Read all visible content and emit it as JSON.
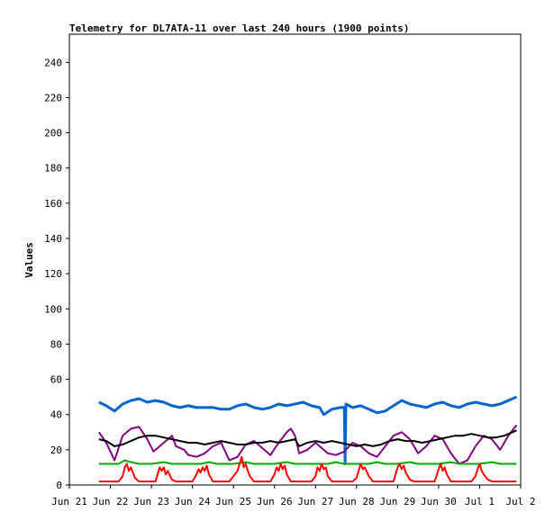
{
  "chart_data": {
    "type": "line",
    "title": "Telemetry for DL7ATA-11 over last 240 hours (1900 points)",
    "xlabel": "",
    "ylabel": "Values",
    "x_ticks": [
      "Jun 21",
      "Jun 22",
      "Jun 23",
      "Jun 24",
      "Jun 25",
      "Jun 26",
      "Jun 27",
      "Jun 28",
      "Jun 29",
      "Jun 30",
      "Jul 1",
      "Jul 2"
    ],
    "xlim_days": [
      0,
      11
    ],
    "ylim": [
      0,
      256
    ],
    "y_ticks": [
      0,
      20,
      40,
      60,
      80,
      100,
      120,
      140,
      160,
      180,
      200,
      220,
      240
    ],
    "grid": false,
    "legend": "none",
    "series": [
      {
        "color": "#0066cc",
        "points": [
          [
            0.72,
            47
          ],
          [
            0.9,
            45
          ],
          [
            1.1,
            42
          ],
          [
            1.3,
            46
          ],
          [
            1.5,
            48
          ],
          [
            1.7,
            49
          ],
          [
            1.9,
            47
          ],
          [
            2.1,
            48
          ],
          [
            2.3,
            47
          ],
          [
            2.5,
            45
          ],
          [
            2.7,
            44
          ],
          [
            2.9,
            45
          ],
          [
            3.1,
            44
          ],
          [
            3.3,
            44
          ],
          [
            3.5,
            44
          ],
          [
            3.7,
            43
          ],
          [
            3.9,
            43
          ],
          [
            4.1,
            45
          ],
          [
            4.3,
            46
          ],
          [
            4.5,
            44
          ],
          [
            4.7,
            43
          ],
          [
            4.9,
            44
          ],
          [
            5.1,
            46
          ],
          [
            5.3,
            45
          ],
          [
            5.5,
            46
          ],
          [
            5.7,
            47
          ],
          [
            5.9,
            45
          ],
          [
            6.1,
            44
          ],
          [
            6.2,
            40
          ],
          [
            6.4,
            43
          ],
          [
            6.6,
            44
          ],
          [
            6.7,
            44
          ],
          [
            6.72,
            12
          ],
          [
            6.74,
            46
          ],
          [
            6.9,
            44
          ],
          [
            7.1,
            45
          ],
          [
            7.3,
            43
          ],
          [
            7.5,
            41
          ],
          [
            7.7,
            42
          ],
          [
            7.9,
            45
          ],
          [
            8.1,
            48
          ],
          [
            8.3,
            46
          ],
          [
            8.5,
            45
          ],
          [
            8.7,
            44
          ],
          [
            8.9,
            46
          ],
          [
            9.1,
            47
          ],
          [
            9.3,
            45
          ],
          [
            9.5,
            44
          ],
          [
            9.7,
            46
          ],
          [
            9.9,
            47
          ],
          [
            10.1,
            46
          ],
          [
            10.3,
            45
          ],
          [
            10.5,
            46
          ],
          [
            10.7,
            48
          ],
          [
            10.9,
            50
          ]
        ]
      },
      {
        "color": "#800080",
        "points": [
          [
            0.72,
            30
          ],
          [
            0.9,
            24
          ],
          [
            1.1,
            14
          ],
          [
            1.3,
            28
          ],
          [
            1.5,
            32
          ],
          [
            1.7,
            33
          ],
          [
            1.9,
            26
          ],
          [
            2.05,
            19
          ],
          [
            2.3,
            24
          ],
          [
            2.5,
            28
          ],
          [
            2.6,
            22
          ],
          [
            2.8,
            20
          ],
          [
            2.9,
            17
          ],
          [
            3.1,
            16
          ],
          [
            3.3,
            18
          ],
          [
            3.5,
            22
          ],
          [
            3.7,
            24
          ],
          [
            3.9,
            14
          ],
          [
            4.1,
            16
          ],
          [
            4.3,
            23
          ],
          [
            4.5,
            25
          ],
          [
            4.7,
            21
          ],
          [
            4.9,
            17
          ],
          [
            5.1,
            24
          ],
          [
            5.3,
            30
          ],
          [
            5.4,
            32
          ],
          [
            5.5,
            28
          ],
          [
            5.6,
            18
          ],
          [
            5.8,
            20
          ],
          [
            6.0,
            24
          ],
          [
            6.1,
            22
          ],
          [
            6.3,
            18
          ],
          [
            6.5,
            17
          ],
          [
            6.7,
            19
          ],
          [
            6.9,
            24
          ],
          [
            7.1,
            22
          ],
          [
            7.3,
            18
          ],
          [
            7.5,
            16
          ],
          [
            7.7,
            22
          ],
          [
            7.9,
            28
          ],
          [
            8.1,
            30
          ],
          [
            8.3,
            26
          ],
          [
            8.5,
            18
          ],
          [
            8.7,
            22
          ],
          [
            8.9,
            28
          ],
          [
            9.1,
            26
          ],
          [
            9.3,
            18
          ],
          [
            9.5,
            12
          ],
          [
            9.7,
            14
          ],
          [
            9.9,
            22
          ],
          [
            10.1,
            28
          ],
          [
            10.3,
            26
          ],
          [
            10.5,
            20
          ],
          [
            10.7,
            28
          ],
          [
            10.9,
            34
          ]
        ]
      },
      {
        "color": "#000000",
        "points": [
          [
            0.72,
            26
          ],
          [
            0.9,
            25
          ],
          [
            1.1,
            22
          ],
          [
            1.3,
            23
          ],
          [
            1.5,
            25
          ],
          [
            1.7,
            27
          ],
          [
            1.9,
            28
          ],
          [
            2.1,
            28
          ],
          [
            2.3,
            27
          ],
          [
            2.5,
            26
          ],
          [
            2.7,
            25
          ],
          [
            2.9,
            24
          ],
          [
            3.1,
            24
          ],
          [
            3.3,
            23
          ],
          [
            3.5,
            24
          ],
          [
            3.7,
            25
          ],
          [
            3.9,
            24
          ],
          [
            4.1,
            23
          ],
          [
            4.3,
            23
          ],
          [
            4.5,
            24
          ],
          [
            4.7,
            24
          ],
          [
            4.9,
            25
          ],
          [
            5.1,
            24
          ],
          [
            5.3,
            25
          ],
          [
            5.5,
            26
          ],
          [
            5.6,
            22
          ],
          [
            5.8,
            24
          ],
          [
            6.0,
            25
          ],
          [
            6.2,
            24
          ],
          [
            6.4,
            25
          ],
          [
            6.6,
            24
          ],
          [
            6.8,
            23
          ],
          [
            7.0,
            22
          ],
          [
            7.2,
            23
          ],
          [
            7.4,
            22
          ],
          [
            7.6,
            23
          ],
          [
            7.8,
            25
          ],
          [
            8.0,
            26
          ],
          [
            8.2,
            25
          ],
          [
            8.4,
            25
          ],
          [
            8.6,
            24
          ],
          [
            8.8,
            25
          ],
          [
            9.0,
            26
          ],
          [
            9.2,
            27
          ],
          [
            9.4,
            28
          ],
          [
            9.6,
            28
          ],
          [
            9.8,
            29
          ],
          [
            10.0,
            28
          ],
          [
            10.2,
            27
          ],
          [
            10.4,
            27
          ],
          [
            10.6,
            28
          ],
          [
            10.8,
            30
          ],
          [
            10.9,
            31
          ]
        ]
      },
      {
        "color": "#00aa00",
        "points": [
          [
            0.72,
            12
          ],
          [
            1.0,
            12
          ],
          [
            1.2,
            12
          ],
          [
            1.35,
            14
          ],
          [
            1.5,
            13
          ],
          [
            1.7,
            12
          ],
          [
            2.0,
            12
          ],
          [
            2.3,
            13
          ],
          [
            2.5,
            12
          ],
          [
            2.8,
            12
          ],
          [
            3.2,
            12
          ],
          [
            3.4,
            13
          ],
          [
            3.6,
            12
          ],
          [
            4.0,
            12
          ],
          [
            4.3,
            13
          ],
          [
            4.5,
            12
          ],
          [
            4.8,
            12
          ],
          [
            5.0,
            12
          ],
          [
            5.3,
            13
          ],
          [
            5.5,
            12
          ],
          [
            5.8,
            12
          ],
          [
            6.0,
            12
          ],
          [
            6.3,
            12
          ],
          [
            6.5,
            13
          ],
          [
            6.7,
            12
          ],
          [
            7.0,
            12
          ],
          [
            7.3,
            12
          ],
          [
            7.5,
            13
          ],
          [
            7.7,
            12
          ],
          [
            8.0,
            12
          ],
          [
            8.3,
            13
          ],
          [
            8.5,
            12
          ],
          [
            8.8,
            12
          ],
          [
            9.0,
            12
          ],
          [
            9.3,
            13
          ],
          [
            9.5,
            12
          ],
          [
            9.8,
            12
          ],
          [
            10.0,
            12
          ],
          [
            10.3,
            13
          ],
          [
            10.5,
            12
          ],
          [
            10.9,
            12
          ]
        ]
      },
      {
        "color": "#ff0000",
        "points": [
          [
            0.72,
            2
          ],
          [
            1.0,
            2
          ],
          [
            1.2,
            2
          ],
          [
            1.3,
            5
          ],
          [
            1.35,
            10
          ],
          [
            1.4,
            12
          ],
          [
            1.45,
            8
          ],
          [
            1.5,
            10
          ],
          [
            1.6,
            4
          ],
          [
            1.7,
            2
          ],
          [
            2.0,
            2
          ],
          [
            2.1,
            2
          ],
          [
            2.15,
            6
          ],
          [
            2.2,
            10
          ],
          [
            2.25,
            8
          ],
          [
            2.3,
            10
          ],
          [
            2.35,
            6
          ],
          [
            2.4,
            8
          ],
          [
            2.5,
            3
          ],
          [
            2.6,
            2
          ],
          [
            3.0,
            2
          ],
          [
            3.1,
            6
          ],
          [
            3.15,
            9
          ],
          [
            3.2,
            7
          ],
          [
            3.25,
            10
          ],
          [
            3.3,
            8
          ],
          [
            3.35,
            11
          ],
          [
            3.4,
            6
          ],
          [
            3.5,
            2
          ],
          [
            3.9,
            2
          ],
          [
            4.1,
            8
          ],
          [
            4.15,
            12
          ],
          [
            4.2,
            16
          ],
          [
            4.25,
            10
          ],
          [
            4.3,
            12
          ],
          [
            4.35,
            8
          ],
          [
            4.4,
            5
          ],
          [
            4.5,
            2
          ],
          [
            4.9,
            2
          ],
          [
            5.0,
            6
          ],
          [
            5.05,
            10
          ],
          [
            5.1,
            8
          ],
          [
            5.15,
            12
          ],
          [
            5.2,
            9
          ],
          [
            5.25,
            11
          ],
          [
            5.3,
            6
          ],
          [
            5.4,
            2
          ],
          [
            5.9,
            2
          ],
          [
            6.0,
            5
          ],
          [
            6.05,
            10
          ],
          [
            6.1,
            8
          ],
          [
            6.15,
            12
          ],
          [
            6.2,
            9
          ],
          [
            6.25,
            10
          ],
          [
            6.3,
            5
          ],
          [
            6.4,
            2
          ],
          [
            6.9,
            2
          ],
          [
            7.0,
            4
          ],
          [
            7.05,
            8
          ],
          [
            7.1,
            12
          ],
          [
            7.15,
            9
          ],
          [
            7.2,
            10
          ],
          [
            7.3,
            5
          ],
          [
            7.4,
            2
          ],
          [
            7.9,
            2
          ],
          [
            7.95,
            6
          ],
          [
            8.0,
            10
          ],
          [
            8.05,
            12
          ],
          [
            8.1,
            9
          ],
          [
            8.15,
            11
          ],
          [
            8.2,
            7
          ],
          [
            8.3,
            3
          ],
          [
            8.4,
            2
          ],
          [
            8.9,
            2
          ],
          [
            8.95,
            5
          ],
          [
            9.0,
            9
          ],
          [
            9.05,
            12
          ],
          [
            9.1,
            8
          ],
          [
            9.15,
            10
          ],
          [
            9.2,
            6
          ],
          [
            9.3,
            2
          ],
          [
            9.8,
            2
          ],
          [
            9.9,
            5
          ],
          [
            9.95,
            9
          ],
          [
            10.0,
            12
          ],
          [
            10.05,
            8
          ],
          [
            10.1,
            6
          ],
          [
            10.2,
            3
          ],
          [
            10.3,
            2
          ],
          [
            10.9,
            2
          ]
        ]
      }
    ]
  }
}
